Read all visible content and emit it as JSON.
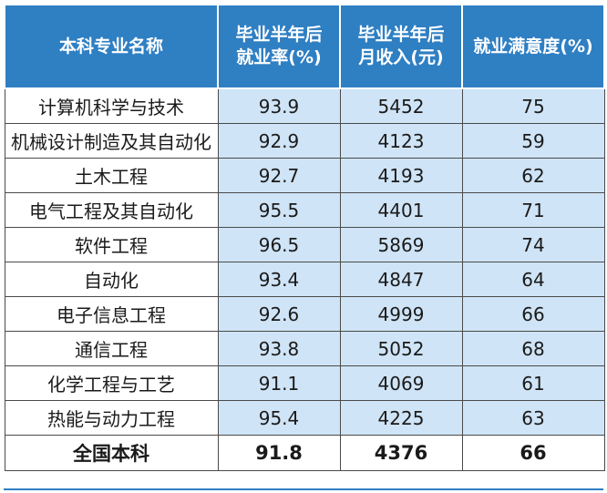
{
  "chart_data": {
    "type": "table",
    "columns": [
      "本科专业名称",
      "毕业半年后就业率(%)",
      "毕业半年后月收入(元)",
      "就业满意度(%)"
    ],
    "rows": [
      {
        "name": "计算机科学与技术",
        "employment": "93.9",
        "income": "5452",
        "satisfaction": "75"
      },
      {
        "name": "机械设计制造及其自动化",
        "employment": "92.9",
        "income": "4123",
        "satisfaction": "59"
      },
      {
        "name": "土木工程",
        "employment": "92.7",
        "income": "4193",
        "satisfaction": "62"
      },
      {
        "name": "电气工程及其自动化",
        "employment": "95.5",
        "income": "4401",
        "satisfaction": "71"
      },
      {
        "name": "软件工程",
        "employment": "96.5",
        "income": "5869",
        "satisfaction": "74"
      },
      {
        "name": "自动化",
        "employment": "93.4",
        "income": "4847",
        "satisfaction": "64"
      },
      {
        "name": "电子信息工程",
        "employment": "92.6",
        "income": "4999",
        "satisfaction": "66"
      },
      {
        "name": "通信工程",
        "employment": "93.8",
        "income": "5052",
        "satisfaction": "68"
      },
      {
        "name": "化学工程与工艺",
        "employment": "91.1",
        "income": "4069",
        "satisfaction": "61"
      },
      {
        "name": "热能与动力工程",
        "employment": "95.4",
        "income": "4225",
        "satisfaction": "63"
      }
    ],
    "total": {
      "name": "全国本科",
      "employment": "91.8",
      "income": "4376",
      "satisfaction": "66"
    }
  },
  "header": {
    "col0": "本科专业名称",
    "col1_line1": "毕业半年后",
    "col1_line2": "就业率(%)",
    "col2_line1": "毕业半年后",
    "col2_line2": "月收入(元)",
    "col3": "就业满意度(%)"
  },
  "colors": {
    "header_bg": "#2f7fc3",
    "data_cell_bg": "#cfe4f6"
  }
}
